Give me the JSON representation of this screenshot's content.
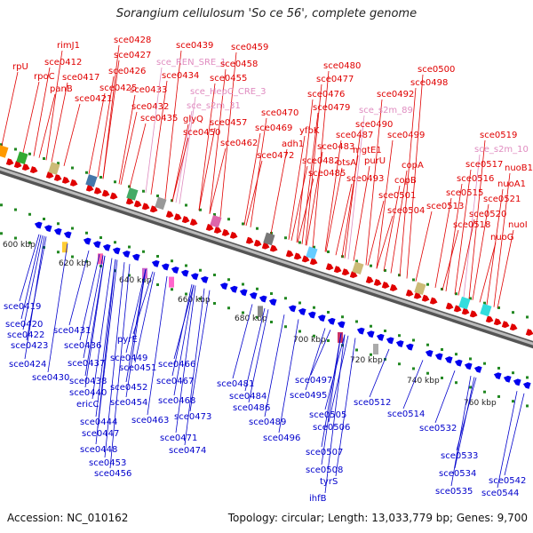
{
  "title": "Sorangium cellulosum 'So ce 56', complete genome",
  "accession": "Accession: NC_010162",
  "topology": "Topology: circular; Length: 13,033,779 bp; Genes: 9,700",
  "colors": {
    "top_label": "#e00000",
    "bottom_label": "#0000cc",
    "regulatory_label": "#e08cc0",
    "forward_gene": "#e00000",
    "reverse_gene": "#0000ee",
    "backbone": "#888888",
    "tick": "#228822"
  },
  "kbp_ticks": [
    "600 kbp",
    "620 kbp",
    "640 kbp",
    "660 kbp",
    "680 kbp",
    "700 kbp",
    "720 kbp",
    "740 kbp",
    "760 kbp"
  ],
  "top_labels": [
    {
      "text": "rpU",
      "kind": "gene"
    },
    {
      "text": "rimJ1",
      "kind": "gene"
    },
    {
      "text": "sce0412",
      "kind": "gene"
    },
    {
      "text": "rpoC",
      "kind": "gene"
    },
    {
      "text": "panB",
      "kind": "gene"
    },
    {
      "text": "sce0417",
      "kind": "gene"
    },
    {
      "text": "sce0421",
      "kind": "gene"
    },
    {
      "text": "sce0428",
      "kind": "gene"
    },
    {
      "text": "sce0427",
      "kind": "gene"
    },
    {
      "text": "sce0426",
      "kind": "gene"
    },
    {
      "text": "sce0425",
      "kind": "gene"
    },
    {
      "text": "sce0433",
      "kind": "gene"
    },
    {
      "text": "sce0432",
      "kind": "gene"
    },
    {
      "text": "sce0435",
      "kind": "gene"
    },
    {
      "text": "sce0439",
      "kind": "gene"
    },
    {
      "text": "sce_REN_SRE_1",
      "kind": "regulatory"
    },
    {
      "text": "sce0434",
      "kind": "gene"
    },
    {
      "text": "sce0459",
      "kind": "gene"
    },
    {
      "text": "sce0458",
      "kind": "gene"
    },
    {
      "text": "sce0455",
      "kind": "gene"
    },
    {
      "text": "sce_HepC_CRE_3",
      "kind": "regulatory"
    },
    {
      "text": "sce_s2m_31",
      "kind": "regulatory"
    },
    {
      "text": "glyQ",
      "kind": "gene"
    },
    {
      "text": "sce0457",
      "kind": "gene"
    },
    {
      "text": "sce0450",
      "kind": "gene"
    },
    {
      "text": "sce0462",
      "kind": "gene"
    },
    {
      "text": "sce0470",
      "kind": "gene"
    },
    {
      "text": "sce0469",
      "kind": "gene"
    },
    {
      "text": "adh1",
      "kind": "gene"
    },
    {
      "text": "sce0472",
      "kind": "gene"
    },
    {
      "text": "sce0480",
      "kind": "gene"
    },
    {
      "text": "sce0477",
      "kind": "gene"
    },
    {
      "text": "sce0476",
      "kind": "gene"
    },
    {
      "text": "sce0479",
      "kind": "gene"
    },
    {
      "text": "yfbK",
      "kind": "gene"
    },
    {
      "text": "sce0483",
      "kind": "gene"
    },
    {
      "text": "sce0482",
      "kind": "gene"
    },
    {
      "text": "sce0485",
      "kind": "gene"
    },
    {
      "text": "sce0487",
      "kind": "gene"
    },
    {
      "text": "mgtE1",
      "kind": "gene"
    },
    {
      "text": "otsA",
      "kind": "gene"
    },
    {
      "text": "purU",
      "kind": "gene"
    },
    {
      "text": "sce0493",
      "kind": "gene"
    },
    {
      "text": "sce0500",
      "kind": "gene"
    },
    {
      "text": "sce0498",
      "kind": "gene"
    },
    {
      "text": "sce0492",
      "kind": "gene"
    },
    {
      "text": "sce_s2m_89",
      "kind": "regulatory"
    },
    {
      "text": "sce0490",
      "kind": "gene"
    },
    {
      "text": "sce0499",
      "kind": "gene"
    },
    {
      "text": "copA",
      "kind": "gene"
    },
    {
      "text": "copB",
      "kind": "gene"
    },
    {
      "text": "sce0501",
      "kind": "gene"
    },
    {
      "text": "sce0504",
      "kind": "gene"
    },
    {
      "text": "sce0519",
      "kind": "gene"
    },
    {
      "text": "sce_s2m_10",
      "kind": "regulatory"
    },
    {
      "text": "sce0517",
      "kind": "gene"
    },
    {
      "text": "nuoB1",
      "kind": "gene"
    },
    {
      "text": "sce0516",
      "kind": "gene"
    },
    {
      "text": "nuoA1",
      "kind": "gene"
    },
    {
      "text": "sce0515",
      "kind": "gene"
    },
    {
      "text": "sce0521",
      "kind": "gene"
    },
    {
      "text": "sce0513",
      "kind": "gene"
    },
    {
      "text": "sce0520",
      "kind": "gene"
    },
    {
      "text": "sce0518",
      "kind": "gene"
    },
    {
      "text": "nuoI",
      "kind": "gene"
    },
    {
      "text": "nuoG",
      "kind": "gene"
    }
  ],
  "bottom_labels": [
    "sce0419",
    "sce0420",
    "sce0422",
    "sce0423",
    "sce0424",
    "sce0430",
    "sce0431",
    "sce0436",
    "sce0437",
    "sce0438",
    "sce0440",
    "ericC",
    "sce0444",
    "sce0447",
    "sce0448",
    "sce0453",
    "sce0456",
    "pyrE",
    "sce0449",
    "sce0451",
    "sce0452",
    "sce0454",
    "sce0463",
    "sce0466",
    "sce0467",
    "sce0468",
    "sce0473",
    "sce0471",
    "sce0474",
    "sce0481",
    "sce0484",
    "sce0486",
    "sce0489",
    "sce0497",
    "sce0495",
    "sce0496",
    "sce0505",
    "sce0506",
    "sce0507",
    "sce0508",
    "tyrS",
    "ihfB",
    "sce0512",
    "sce0514",
    "sce0532",
    "sce0533",
    "sce0534",
    "sce0535",
    "sce0542",
    "sce0544"
  ]
}
